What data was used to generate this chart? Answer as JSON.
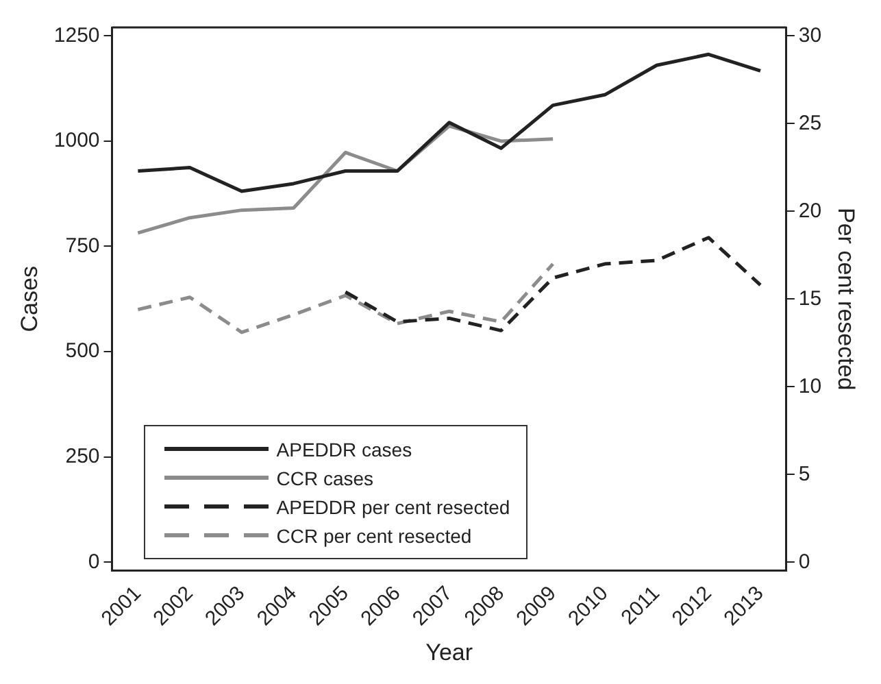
{
  "chart_data": {
    "type": "line",
    "xlabel": "Year",
    "ylabel": "Cases",
    "y2label": "Per cent resected",
    "categories": [
      "2001",
      "2002",
      "2003",
      "2004",
      "2005",
      "2006",
      "2007",
      "2008",
      "2009",
      "2010",
      "2011",
      "2012",
      "2013"
    ],
    "series": [
      {
        "name": "APEDDR cases",
        "color": "#222222",
        "line_style": "solid",
        "values": [
          929,
          937,
          881,
          899,
          929,
          929,
          1044,
          983,
          1085,
          1110,
          1180,
          1206,
          1167
        ]
      },
      {
        "name": "CCR cases",
        "color": "#8c8c8c",
        "line_style": "solid",
        "values": [
          782,
          818,
          836,
          841,
          973,
          929,
          1036,
          1000,
          1005,
          null,
          null,
          null,
          null
        ]
      },
      {
        "name": "APEDDR per cent resected",
        "color": "#222222",
        "line_style": "dashed",
        "axis": "y2",
        "values": [
          null,
          null,
          null,
          null,
          15.4,
          13.7,
          13.9,
          13.2,
          16.2,
          17.0,
          17.2,
          18.5,
          15.8
        ]
      },
      {
        "name": "CCR per cent resected",
        "color": "#8c8c8c",
        "line_style": "dashed",
        "axis": "y2",
        "values": [
          14.4,
          15.1,
          13.1,
          14.1,
          15.2,
          13.6,
          14.3,
          13.7,
          17.0,
          null,
          null,
          null,
          null
        ]
      }
    ],
    "ylim": [
      -20,
      1270
    ],
    "yticks": [
      0,
      250,
      500,
      750,
      1000,
      1250
    ],
    "y2lim": [
      -0.48,
      30.48
    ],
    "y2ticks": [
      0,
      5,
      10,
      15,
      20,
      25,
      30
    ],
    "grid": false,
    "legend": "bottom left",
    "marker": "none"
  }
}
